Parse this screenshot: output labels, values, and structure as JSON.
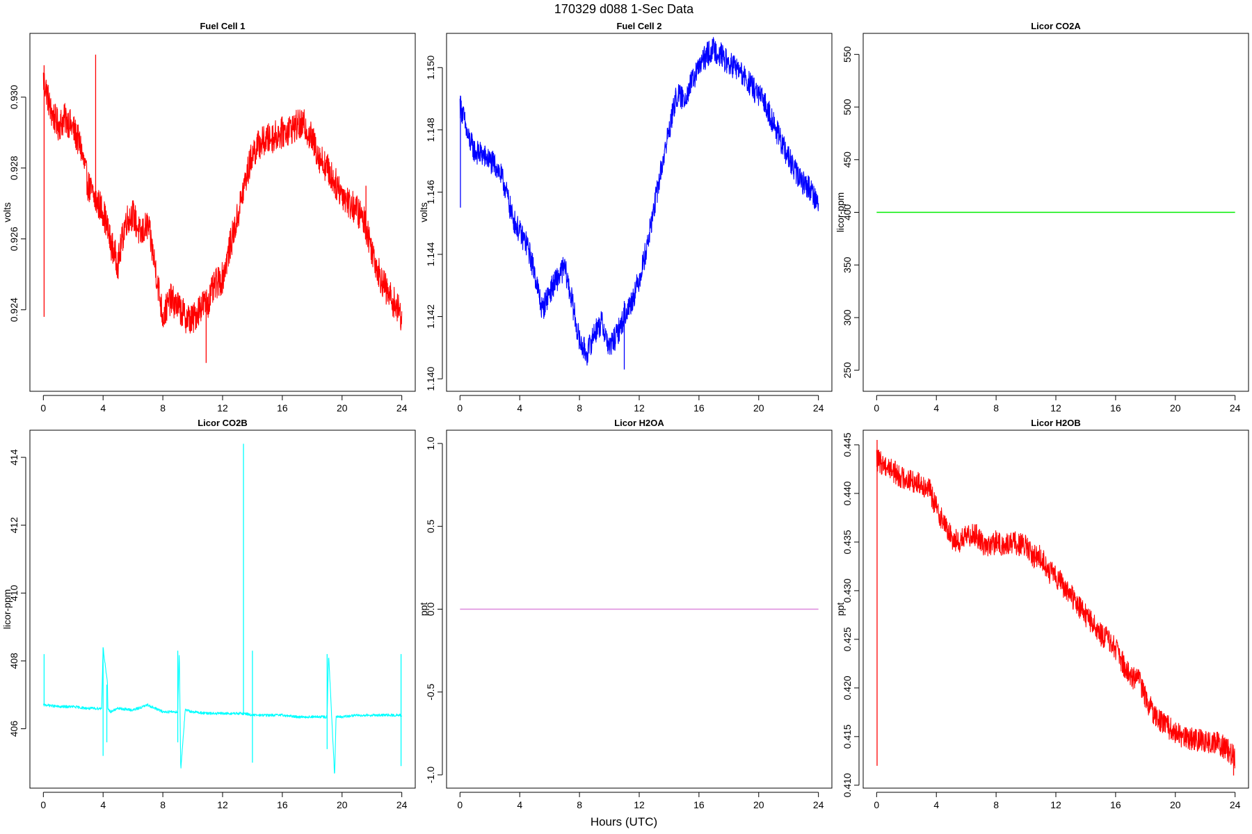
{
  "figure": {
    "title": "170329   d088   1-Sec Data",
    "xlabel": "Hours (UTC)"
  },
  "chart_data": [
    {
      "type": "line",
      "title": "Fuel Cell 1",
      "ylabel": "volts",
      "color": "#ff0000",
      "xlim": [
        -0.9,
        24.9
      ],
      "ylim": [
        0.9217,
        0.9318
      ],
      "xticks": [
        0,
        4,
        8,
        12,
        16,
        20,
        24
      ],
      "yticks": [
        0.924,
        0.926,
        0.928,
        0.93
      ],
      "ytick_labels": [
        "0.924",
        "0.926",
        "0.928",
        "0.930"
      ],
      "noise": 0.00045,
      "x": [
        0,
        0.2,
        0.5,
        1,
        1.5,
        2,
        2.5,
        3,
        3.5,
        4,
        4.5,
        5,
        5.5,
        6,
        6.5,
        7,
        7.5,
        8,
        8.5,
        9,
        9.5,
        10,
        10.5,
        11,
        11.5,
        12,
        12.5,
        13,
        13.5,
        14,
        14.5,
        15,
        15.5,
        16,
        16.5,
        17,
        17.5,
        18,
        18.5,
        19,
        19.5,
        20,
        20.5,
        21,
        21.5,
        22,
        22.5,
        23,
        23.5,
        24
      ],
      "y": [
        0.9305,
        0.9302,
        0.9296,
        0.9292,
        0.9294,
        0.9291,
        0.9286,
        0.9275,
        0.9271,
        0.9268,
        0.9259,
        0.9253,
        0.9265,
        0.9267,
        0.9261,
        0.9264,
        0.9252,
        0.9238,
        0.9243,
        0.9241,
        0.9238,
        0.9237,
        0.9241,
        0.9242,
        0.9247,
        0.9249,
        0.9258,
        0.9266,
        0.9276,
        0.9284,
        0.9287,
        0.9288,
        0.9289,
        0.929,
        0.9291,
        0.9292,
        0.9292,
        0.9288,
        0.9283,
        0.928,
        0.9276,
        0.9273,
        0.927,
        0.9268,
        0.9265,
        0.9257,
        0.925,
        0.9245,
        0.9242,
        0.9238
      ],
      "spikes": [
        {
          "x": 0.05,
          "y0": 0.9238,
          "y1": 0.9309
        },
        {
          "x": 3.5,
          "y0": 0.9268,
          "y1": 0.9312
        },
        {
          "x": 10.9,
          "y0": 0.9225,
          "y1": 0.9245
        },
        {
          "x": 21.6,
          "y0": 0.926,
          "y1": 0.9275
        }
      ]
    },
    {
      "type": "line",
      "title": "Fuel Cell 2",
      "ylabel": "volts",
      "color": "#0000ff",
      "xlim": [
        -0.9,
        24.9
      ],
      "ylim": [
        1.1396,
        1.1511
      ],
      "xticks": [
        0,
        4,
        8,
        12,
        16,
        20,
        24
      ],
      "yticks": [
        1.14,
        1.142,
        1.144,
        1.146,
        1.148,
        1.15
      ],
      "ytick_labels": [
        "1.140",
        "1.142",
        "1.144",
        "1.146",
        "1.148",
        "1.150"
      ],
      "noise": 0.0004,
      "x": [
        0,
        0.2,
        0.5,
        1,
        1.5,
        2,
        2.5,
        3,
        3.5,
        4,
        4.5,
        5,
        5.5,
        6,
        6.5,
        7,
        7.5,
        8,
        8.5,
        9,
        9.5,
        10,
        10.5,
        11,
        11.5,
        12,
        12.5,
        13,
        13.5,
        14,
        14.5,
        15,
        15.5,
        16,
        16.5,
        17,
        17.5,
        18,
        18.5,
        19,
        19.5,
        20,
        20.5,
        21,
        21.5,
        22,
        22.5,
        23,
        23.5,
        24
      ],
      "y": [
        1.1488,
        1.1485,
        1.1478,
        1.1473,
        1.1472,
        1.147,
        1.1468,
        1.1462,
        1.1452,
        1.1447,
        1.1443,
        1.1434,
        1.1422,
        1.1428,
        1.1432,
        1.1436,
        1.1425,
        1.1412,
        1.1408,
        1.1415,
        1.1418,
        1.141,
        1.1414,
        1.142,
        1.1425,
        1.1432,
        1.1442,
        1.1455,
        1.1468,
        1.148,
        1.1491,
        1.149,
        1.1495,
        1.15,
        1.1504,
        1.1506,
        1.1504,
        1.1501,
        1.15,
        1.1497,
        1.1494,
        1.1491,
        1.1488,
        1.1482,
        1.1476,
        1.1471,
        1.1466,
        1.1463,
        1.1461,
        1.1456
      ],
      "spikes": [
        {
          "x": 0.03,
          "y0": 1.1455,
          "y1": 1.1491
        },
        {
          "x": 11.0,
          "y0": 1.1403,
          "y1": 1.1425
        }
      ]
    },
    {
      "type": "line",
      "title": "Licor CO2A",
      "ylabel": "licor-ppm",
      "color": "#00ee00",
      "xlim": [
        -0.9,
        24.9
      ],
      "ylim": [
        230,
        570
      ],
      "xticks": [
        0,
        4,
        8,
        12,
        16,
        20,
        24
      ],
      "yticks": [
        250,
        300,
        350,
        400,
        450,
        500,
        550
      ],
      "ytick_labels": [
        "250",
        "300",
        "350",
        "400",
        "450",
        "500",
        "550"
      ],
      "noise": 0,
      "x": [
        0,
        24
      ],
      "y": [
        400,
        400
      ]
    },
    {
      "type": "line",
      "title": "Licor CO2B",
      "ylabel": "licor-ppm",
      "color": "#00ffff",
      "xlim": [
        -0.9,
        24.9
      ],
      "ylim": [
        404.25,
        414.8
      ],
      "xticks": [
        0,
        4,
        8,
        12,
        16,
        20,
        24
      ],
      "yticks": [
        406,
        408,
        410,
        412,
        414
      ],
      "ytick_labels": [
        "406",
        "408",
        "410",
        "412",
        "414"
      ],
      "noise": 0.04,
      "x": [
        0,
        0.2,
        1,
        2,
        3,
        3.9,
        4.0,
        4.3,
        4.31,
        4.5,
        5,
        6,
        7,
        8,
        9,
        9.1,
        9.2,
        9.5,
        10,
        11,
        12,
        13,
        13.5,
        14,
        15,
        16,
        17,
        18,
        19,
        19.1,
        19.5,
        19.6,
        20,
        21,
        22,
        23,
        24
      ],
      "y": [
        406.7,
        406.7,
        406.65,
        406.65,
        406.6,
        406.6,
        408.4,
        407.3,
        406.6,
        406.5,
        406.6,
        406.55,
        406.7,
        406.5,
        406.5,
        408.3,
        404.8,
        406.55,
        406.5,
        406.45,
        406.45,
        406.45,
        406.45,
        406.4,
        406.4,
        406.4,
        406.35,
        406.35,
        406.35,
        408.2,
        404.6,
        406.35,
        406.35,
        406.4,
        406.4,
        406.4,
        406.4
      ],
      "spikes": [
        {
          "x": 0.05,
          "y0": 406.7,
          "y1": 408.2
        },
        {
          "x": 4.0,
          "y0": 405.2,
          "y1": 408.4
        },
        {
          "x": 4.25,
          "y0": 405.6,
          "y1": 407.3
        },
        {
          "x": 9.0,
          "y0": 405.6,
          "y1": 408.3
        },
        {
          "x": 13.4,
          "y0": 406.4,
          "y1": 414.4
        },
        {
          "x": 14.0,
          "y0": 405.0,
          "y1": 408.3
        },
        {
          "x": 19.0,
          "y0": 405.4,
          "y1": 408.2
        },
        {
          "x": 23.95,
          "y0": 404.9,
          "y1": 408.2
        }
      ]
    },
    {
      "type": "line",
      "title": "Licor H2OA",
      "ylabel": "ppt",
      "color": "#dd88dd",
      "xlim": [
        -0.9,
        24.9
      ],
      "ylim": [
        -1.08,
        1.08
      ],
      "xticks": [
        0,
        4,
        8,
        12,
        16,
        20,
        24
      ],
      "yticks": [
        -1,
        -0.5,
        0,
        0.5,
        1
      ],
      "ytick_labels": [
        "-1.0",
        "-0.5",
        "0.0",
        "0.5",
        "1.0"
      ],
      "noise": 0,
      "x": [
        0,
        24
      ],
      "y": [
        0,
        0
      ]
    },
    {
      "type": "line",
      "title": "Licor H2OB",
      "ylabel": "ppt",
      "color": "#ff0000",
      "xlim": [
        -0.9,
        24.9
      ],
      "ylim": [
        0.4097,
        0.4465
      ],
      "xticks": [
        0,
        4,
        8,
        12,
        16,
        20,
        24
      ],
      "yticks": [
        0.41,
        0.415,
        0.42,
        0.425,
        0.43,
        0.435,
        0.44,
        0.445
      ],
      "ytick_labels": [
        "0.410",
        "0.415",
        "0.420",
        "0.425",
        "0.430",
        "0.435",
        "0.440",
        "0.445"
      ],
      "noise": 0.0012,
      "x": [
        0,
        0.2,
        0.5,
        1,
        1.5,
        2,
        2.5,
        3,
        3.5,
        4,
        4.5,
        5,
        5.5,
        6,
        6.5,
        7,
        7.5,
        8,
        8.5,
        9,
        9.5,
        10,
        10.5,
        11,
        11.5,
        12,
        12.5,
        13,
        13.5,
        14,
        14.5,
        15,
        15.5,
        16,
        16.5,
        17,
        17.5,
        18,
        18.5,
        19,
        19.5,
        20,
        20.5,
        21,
        21.5,
        22,
        22.5,
        23,
        23.5,
        24
      ],
      "y": [
        0.4435,
        0.4432,
        0.443,
        0.4425,
        0.4418,
        0.4415,
        0.4412,
        0.441,
        0.4405,
        0.4385,
        0.437,
        0.4355,
        0.435,
        0.4355,
        0.436,
        0.435,
        0.4345,
        0.435,
        0.4345,
        0.435,
        0.4348,
        0.4345,
        0.4335,
        0.4335,
        0.432,
        0.4315,
        0.4305,
        0.4295,
        0.4285,
        0.4275,
        0.4265,
        0.4255,
        0.425,
        0.424,
        0.4225,
        0.421,
        0.421,
        0.419,
        0.4175,
        0.4165,
        0.416,
        0.4155,
        0.415,
        0.4148,
        0.4146,
        0.4145,
        0.4144,
        0.4142,
        0.4136,
        0.4128
      ],
      "spikes": [
        {
          "x": 0.03,
          "y0": 0.412,
          "y1": 0.4455
        },
        {
          "x": 23.9,
          "y0": 0.411,
          "y1": 0.4135
        }
      ]
    }
  ]
}
